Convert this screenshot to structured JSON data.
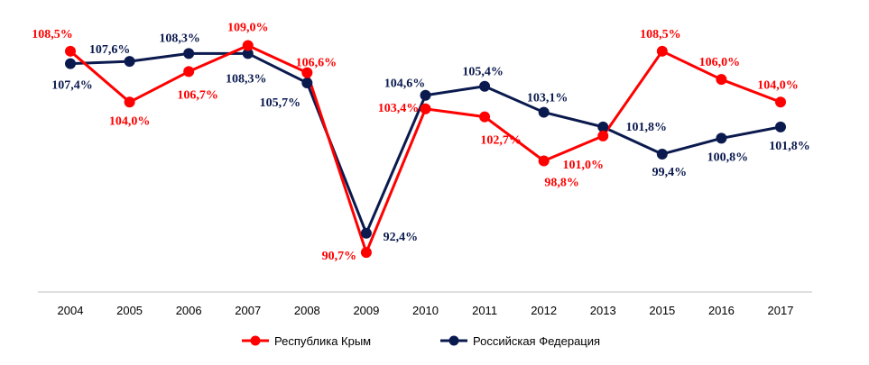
{
  "chart_data": {
    "type": "line",
    "categories": [
      "2004",
      "2005",
      "2006",
      "2007",
      "2008",
      "2009",
      "2010",
      "2011",
      "2012",
      "2013",
      "2015",
      "2016",
      "2017"
    ],
    "ylim": [
      88,
      110
    ],
    "grid": false,
    "legend_position": "bottom",
    "series": [
      {
        "name": "Республика Крым",
        "color": "#ff0000",
        "values": [
          108.5,
          104.0,
          106.7,
          109.0,
          106.6,
          90.7,
          103.4,
          102.7,
          98.8,
          101.0,
          108.5,
          106.0,
          104.0
        ],
        "labels": [
          "108,5%",
          "104,0%",
          "106,7%",
          "109,0%",
          "106,6%",
          "90,7%",
          "103,4%",
          "102,7%",
          "98,8%",
          "101,0%",
          "108,5%",
          "106,0%",
          "104,0%"
        ]
      },
      {
        "name": "Российская Федерация",
        "color": "#0b1a4e",
        "values": [
          107.4,
          107.6,
          108.3,
          108.3,
          105.7,
          92.4,
          104.6,
          105.4,
          103.1,
          101.8,
          99.4,
          100.8,
          101.8
        ],
        "labels": [
          "107,4%",
          "107,6%",
          "108,3%",
          "108,3%",
          "105,7%",
          "92,4%",
          "104,6%",
          "105,4%",
          "103,1%",
          "101,8%",
          "99,4%",
          "100,8%",
          "101,8%"
        ]
      }
    ]
  }
}
